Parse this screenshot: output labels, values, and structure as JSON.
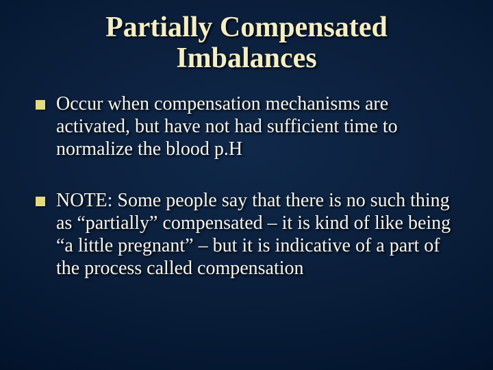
{
  "colors": {
    "title_color": "#f5eec3",
    "bullet_square_color": "#e6da7e",
    "body_text_color": "#f6f4eb"
  },
  "title": {
    "line1": "Partially Compensated",
    "line2": "Imbalances"
  },
  "bullets": [
    {
      "text": "Occur when compensation mechanisms are activated, but have not had sufficient time to normalize the blood p.H"
    },
    {
      "text": "NOTE:  Some people say that there is no such thing as “partially” compensated – it is kind of like being “a little pregnant” – but it is indicative of a part of the process called compensation"
    }
  ]
}
